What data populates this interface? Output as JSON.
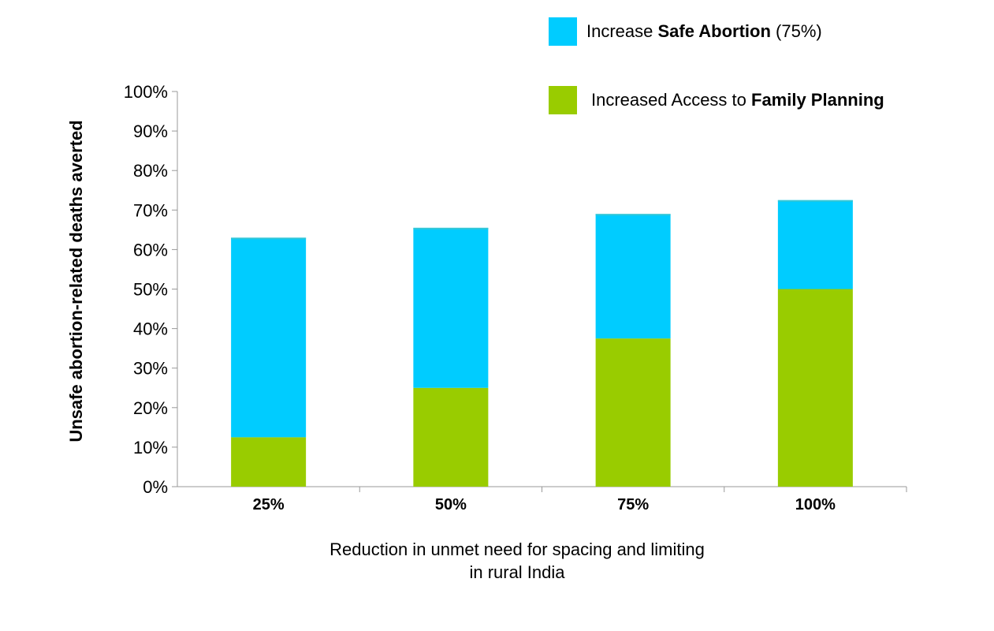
{
  "chart_data": {
    "type": "bar",
    "stacked": true,
    "categories": [
      "25%",
      "50%",
      "75%",
      "100%"
    ],
    "series": [
      {
        "name": "Increased Access to Family Planning",
        "color": "#99cc00",
        "values": [
          12.5,
          25,
          37.5,
          50
        ]
      },
      {
        "name": "Increase Safe Abortion (75%)",
        "color": "#00ccff",
        "values": [
          50.5,
          40.5,
          31.5,
          22.5
        ]
      }
    ],
    "ylabel": "Unsafe abortion-related deaths averted",
    "xlabel_lines": [
      "Reduction in unmet need for spacing and limiting",
      "in rural India"
    ],
    "ylim": [
      0,
      100
    ],
    "yticks": [
      "0%",
      "10%",
      "20%",
      "30%",
      "40%",
      "50%",
      "60%",
      "70%",
      "80%",
      "90%",
      "100%"
    ],
    "grid": false,
    "legend_position": "top-right"
  },
  "legend": {
    "safe_abortion": {
      "prefix": "Increase ",
      "bold": "Safe Abortion",
      "suffix": " (75%)",
      "color": "#00ccff"
    },
    "family_planning": {
      "prefix": "Increased Access to ",
      "bold": "Family Planning",
      "suffix": "",
      "color": "#99cc00"
    }
  }
}
